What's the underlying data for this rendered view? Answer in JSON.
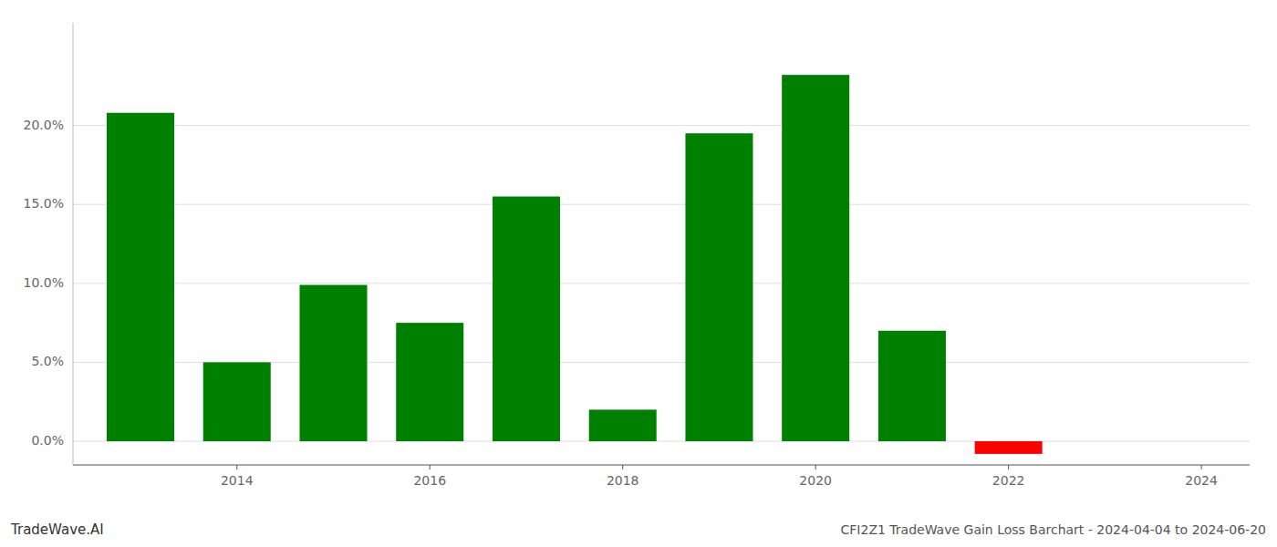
{
  "chart_data": {
    "type": "bar",
    "title": "CFI2Z1 TradeWave Gain Loss Barchart - 2024-04-04 to 2024-06-20",
    "annotations": [
      "TradeWave.AI"
    ],
    "x": [
      2013,
      2014,
      2015,
      2016,
      2017,
      2018,
      2019,
      2020,
      2021,
      2022,
      2023
    ],
    "values": [
      0.208,
      0.05,
      0.099,
      0.075,
      0.155,
      0.02,
      0.195,
      0.232,
      0.07,
      -0.008,
      0.0
    ],
    "colors": [
      "#008000",
      "#008000",
      "#008000",
      "#008000",
      "#008000",
      "#008000",
      "#008000",
      "#008000",
      "#008000",
      "#ff0000",
      "#008000"
    ],
    "xlim": [
      2012.3,
      2024.5
    ],
    "xticks": [
      2014,
      2016,
      2018,
      2020,
      2022,
      2024
    ],
    "ylim": [
      -0.015,
      0.265
    ],
    "yticks": [
      {
        "value": 0.0,
        "label": "0.0%"
      },
      {
        "value": 0.05,
        "label": "5.0%"
      },
      {
        "value": 0.1,
        "label": "10.0%"
      },
      {
        "value": 0.15,
        "label": "15.0%"
      },
      {
        "value": 0.2,
        "label": "20.0%"
      }
    ],
    "grid": true
  }
}
